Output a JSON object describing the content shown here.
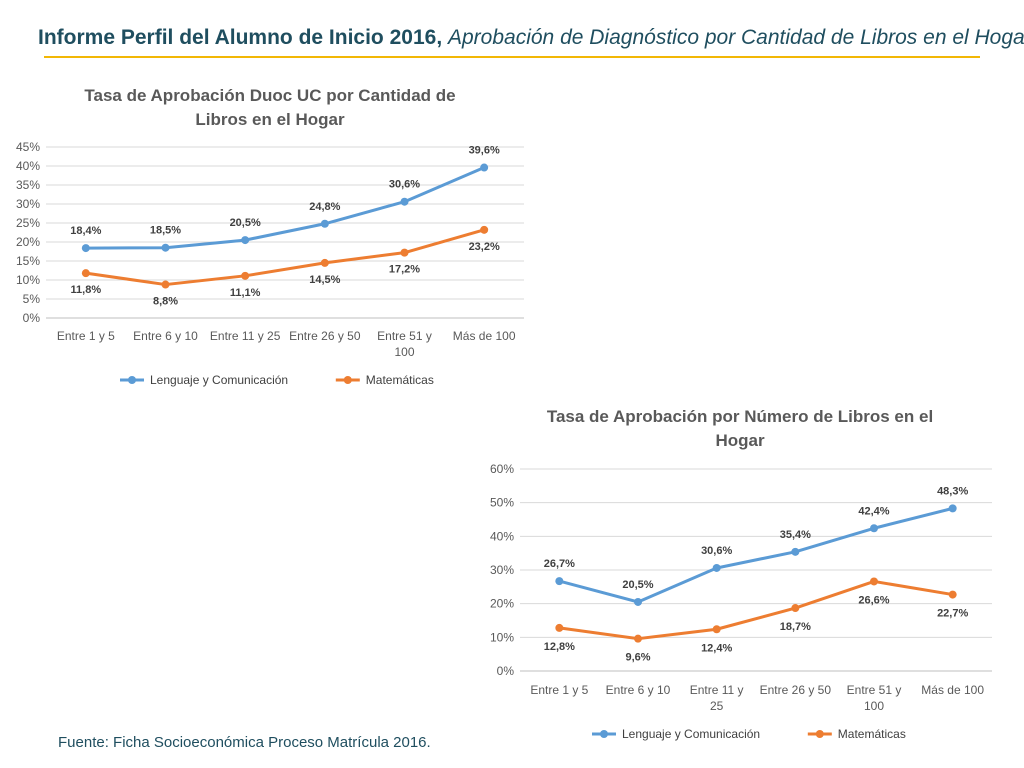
{
  "header": {
    "title_bold": "Informe Perfil del Alumno de Inicio 2016,",
    "title_italic": "Aprobación de Diagnóstico por Cantidad de Libros en el Hogar"
  },
  "footnote": "Fuente: Ficha Socioeconómica Proceso Matrícula 2016.",
  "colors": {
    "lenguaje": "#5b9bd5",
    "matematicas": "#ed7d31",
    "accent": "#f2b705",
    "title": "#1f4e5f"
  },
  "chart_data": [
    {
      "type": "line",
      "title_lines": [
        "Tasa de Aprobación Duoc UC por Cantidad de",
        "Libros en el Hogar"
      ],
      "categories": [
        [
          "Entre 1 y 5"
        ],
        [
          "Entre 6 y 10"
        ],
        [
          "Entre 11 y 25"
        ],
        [
          "Entre 26 y 50"
        ],
        [
          "Entre 51 y",
          "100"
        ],
        [
          "Más de 100"
        ]
      ],
      "yticks": [
        "0%",
        "5%",
        "10%",
        "15%",
        "20%",
        "25%",
        "30%",
        "35%",
        "40%",
        "45%"
      ],
      "ylim": [
        0,
        45
      ],
      "series": [
        {
          "name": "Lenguaje y Comunicación",
          "color": "#5b9bd5",
          "values": [
            18.4,
            18.5,
            20.5,
            24.8,
            30.6,
            39.6
          ],
          "labels": [
            "18,4%",
            "18,5%",
            "20,5%",
            "24,8%",
            "30,6%",
            "39,6%"
          ]
        },
        {
          "name": "Matemáticas",
          "color": "#ed7d31",
          "values": [
            11.8,
            8.8,
            11.1,
            14.5,
            17.2,
            23.2
          ],
          "labels": [
            "11,8%",
            "8,8%",
            "11,1%",
            "14,5%",
            "17,2%",
            "23,2%"
          ]
        }
      ],
      "legend": [
        "Lenguaje y Comunicación",
        "Matemáticas"
      ],
      "legend_position": "bottom"
    },
    {
      "type": "line",
      "title_lines": [
        "Tasa de Aprobación por Número de Libros en el",
        "Hogar"
      ],
      "categories": [
        [
          "Entre 1 y 5"
        ],
        [
          "Entre 6 y 10"
        ],
        [
          "Entre 11 y",
          "25"
        ],
        [
          "Entre 26 y 50"
        ],
        [
          "Entre 51 y",
          "100"
        ],
        [
          "Más de 100"
        ]
      ],
      "yticks": [
        "0%",
        "10%",
        "20%",
        "30%",
        "40%",
        "50%",
        "60%"
      ],
      "ylim": [
        0,
        60
      ],
      "series": [
        {
          "name": "Lenguaje y Comunicación",
          "color": "#5b9bd5",
          "values": [
            26.7,
            20.5,
            30.6,
            35.4,
            42.4,
            48.3
          ],
          "labels": [
            "26,7%",
            "20,5%",
            "30,6%",
            "35,4%",
            "42,4%",
            "48,3%"
          ]
        },
        {
          "name": "Matemáticas",
          "color": "#ed7d31",
          "values": [
            12.8,
            9.6,
            12.4,
            18.7,
            26.6,
            22.7
          ],
          "labels": [
            "12,8%",
            "9,6%",
            "12,4%",
            "18,7%",
            "26,6%",
            "22,7%"
          ]
        }
      ],
      "legend": [
        "Lenguaje y Comunicación",
        "Matemáticas"
      ],
      "legend_position": "bottom"
    }
  ]
}
